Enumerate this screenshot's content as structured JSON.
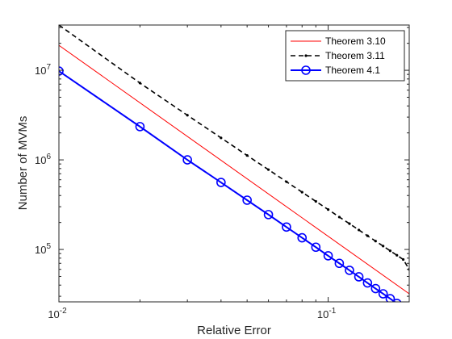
{
  "chart_data": {
    "type": "line",
    "xlabel": "Relative Error",
    "ylabel": "Number of MVMs",
    "xscale": "log",
    "yscale": "log",
    "xlim": [
      0.01,
      0.2
    ],
    "ylim": [
      26000,
      32000000
    ],
    "grid": false,
    "legend_position": "top-right",
    "x_ticks": [
      {
        "value": 0.01,
        "base": "10",
        "exp": "-2"
      },
      {
        "value": 0.1,
        "base": "10",
        "exp": "-1"
      }
    ],
    "y_ticks": [
      {
        "value": 100000,
        "base": "10",
        "exp": "5"
      },
      {
        "value": 1000000,
        "base": "10",
        "exp": "6"
      },
      {
        "value": 10000000,
        "base": "10",
        "exp": "7"
      }
    ],
    "series": [
      {
        "name": "Theorem 3.10",
        "color": "#ff0000",
        "style": "solid",
        "marker": "none",
        "x": [
          0.01,
          0.2
        ],
        "y": [
          19000000,
          32000
        ]
      },
      {
        "name": "Theorem 3.11",
        "color": "#000000",
        "style": "dashed",
        "marker": "dot",
        "x": [
          0.01,
          0.02,
          0.03,
          0.04,
          0.05,
          0.06,
          0.07,
          0.08,
          0.09,
          0.1,
          0.11,
          0.12,
          0.13,
          0.14,
          0.15,
          0.16,
          0.17,
          0.18,
          0.19,
          0.2
        ],
        "y": [
          32000000,
          7200000,
          3150000,
          1760000,
          1120000,
          778000,
          570000,
          436000,
          344000,
          279000,
          230000,
          194000,
          165000,
          142000,
          124000,
          109000,
          96500,
          86100,
          77300,
          60000
        ]
      },
      {
        "name": "Theorem 4.1",
        "color": "#0000ff",
        "style": "solid",
        "marker": "circle",
        "x": [
          0.01,
          0.02,
          0.03,
          0.04,
          0.05,
          0.06,
          0.07,
          0.08,
          0.09,
          0.1,
          0.11,
          0.12,
          0.13,
          0.14,
          0.15,
          0.16,
          0.17,
          0.18,
          0.19,
          0.2
        ],
        "y": [
          9800000,
          2350000,
          1000000,
          560000,
          355000,
          245000,
          178000,
          135000,
          106000,
          85000,
          70000,
          58500,
          49500,
          42300,
          36600,
          32000,
          28200,
          25000,
          22300,
          20000
        ]
      }
    ]
  }
}
